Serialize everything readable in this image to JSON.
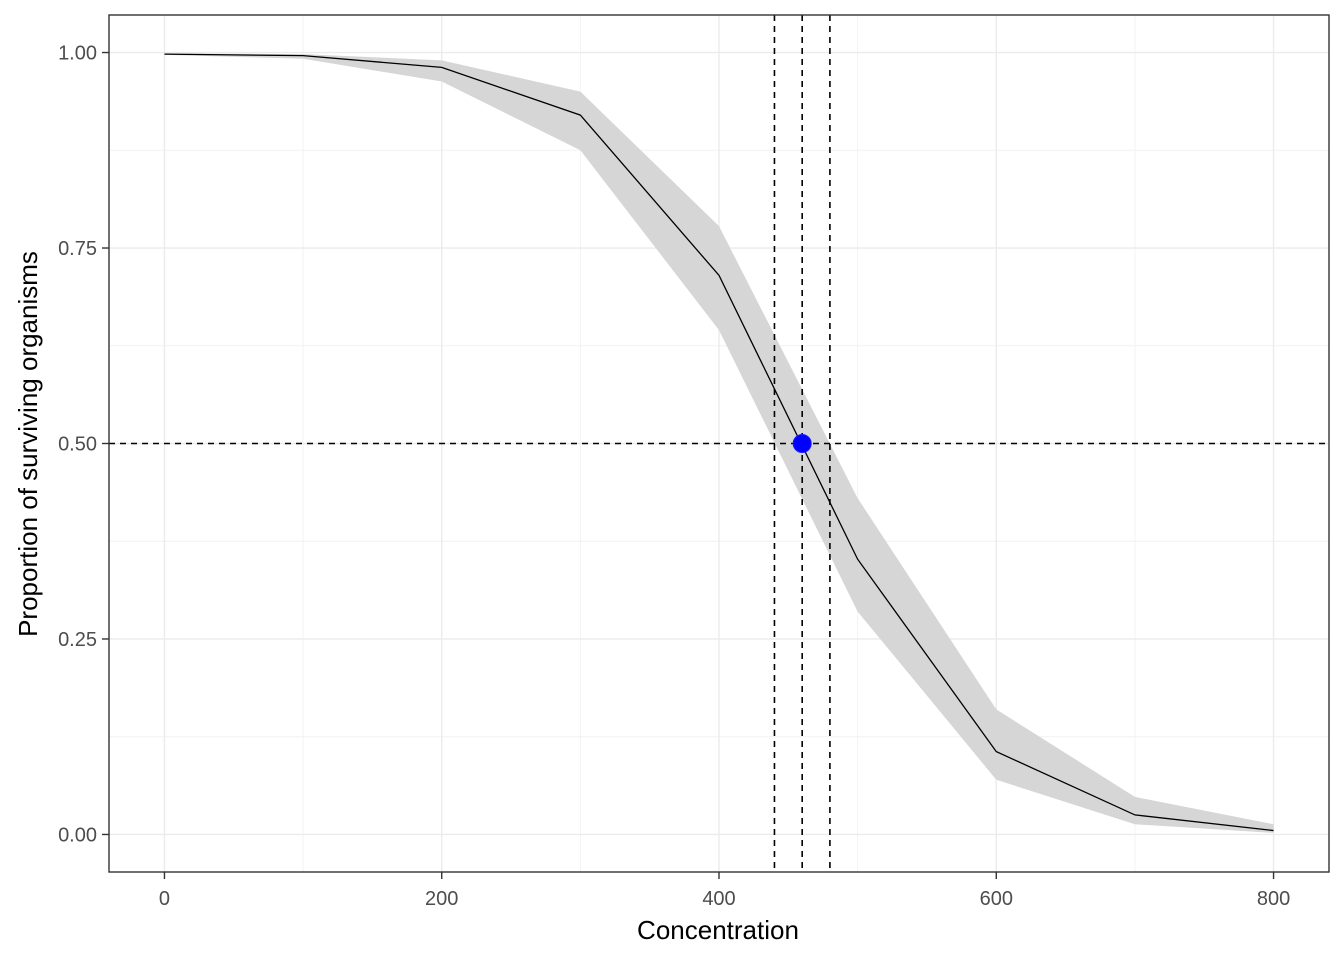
{
  "chart_data": {
    "type": "line",
    "title": "",
    "xlabel": "Concentration",
    "ylabel": "Proportion of surviving organisms",
    "xlim": [
      -40,
      840
    ],
    "ylim": [
      -0.048,
      1.048
    ],
    "grid": true,
    "legend": "none",
    "x_ticks": [
      0,
      200,
      400,
      600,
      800
    ],
    "x_tick_labels": [
      "0",
      "200",
      "400",
      "600",
      "800"
    ],
    "y_ticks": [
      0,
      0.25,
      0.5,
      0.75,
      1
    ],
    "y_tick_labels": [
      "0.00",
      "0.25",
      "0.50",
      "0.75",
      "1.00"
    ],
    "x_minor": [
      100,
      300,
      500,
      700
    ],
    "y_minor": [
      0.125,
      0.375,
      0.625,
      0.875
    ],
    "series": [
      {
        "x": [
          0,
          100,
          200,
          300,
          400,
          500,
          600,
          700,
          800
        ],
        "values": [
          0.998,
          0.996,
          0.981,
          0.92,
          0.715,
          0.352,
          0.106,
          0.025,
          0.005
        ],
        "lower": [
          0.997,
          0.992,
          0.963,
          0.875,
          0.645,
          0.285,
          0.07,
          0.013,
          0.002
        ],
        "upper": [
          0.999,
          0.998,
          0.99,
          0.95,
          0.778,
          0.43,
          0.16,
          0.048,
          0.013
        ],
        "line_color": "#000000",
        "band_color": "#d6d6d6"
      }
    ],
    "reference_lines": {
      "horizontal_y": 0.5,
      "vertical_x": [
        440,
        460,
        480
      ],
      "style": "dashed",
      "color": "#000000"
    },
    "point": {
      "x": 460,
      "y": 0.5,
      "color": "#0000ff"
    }
  }
}
